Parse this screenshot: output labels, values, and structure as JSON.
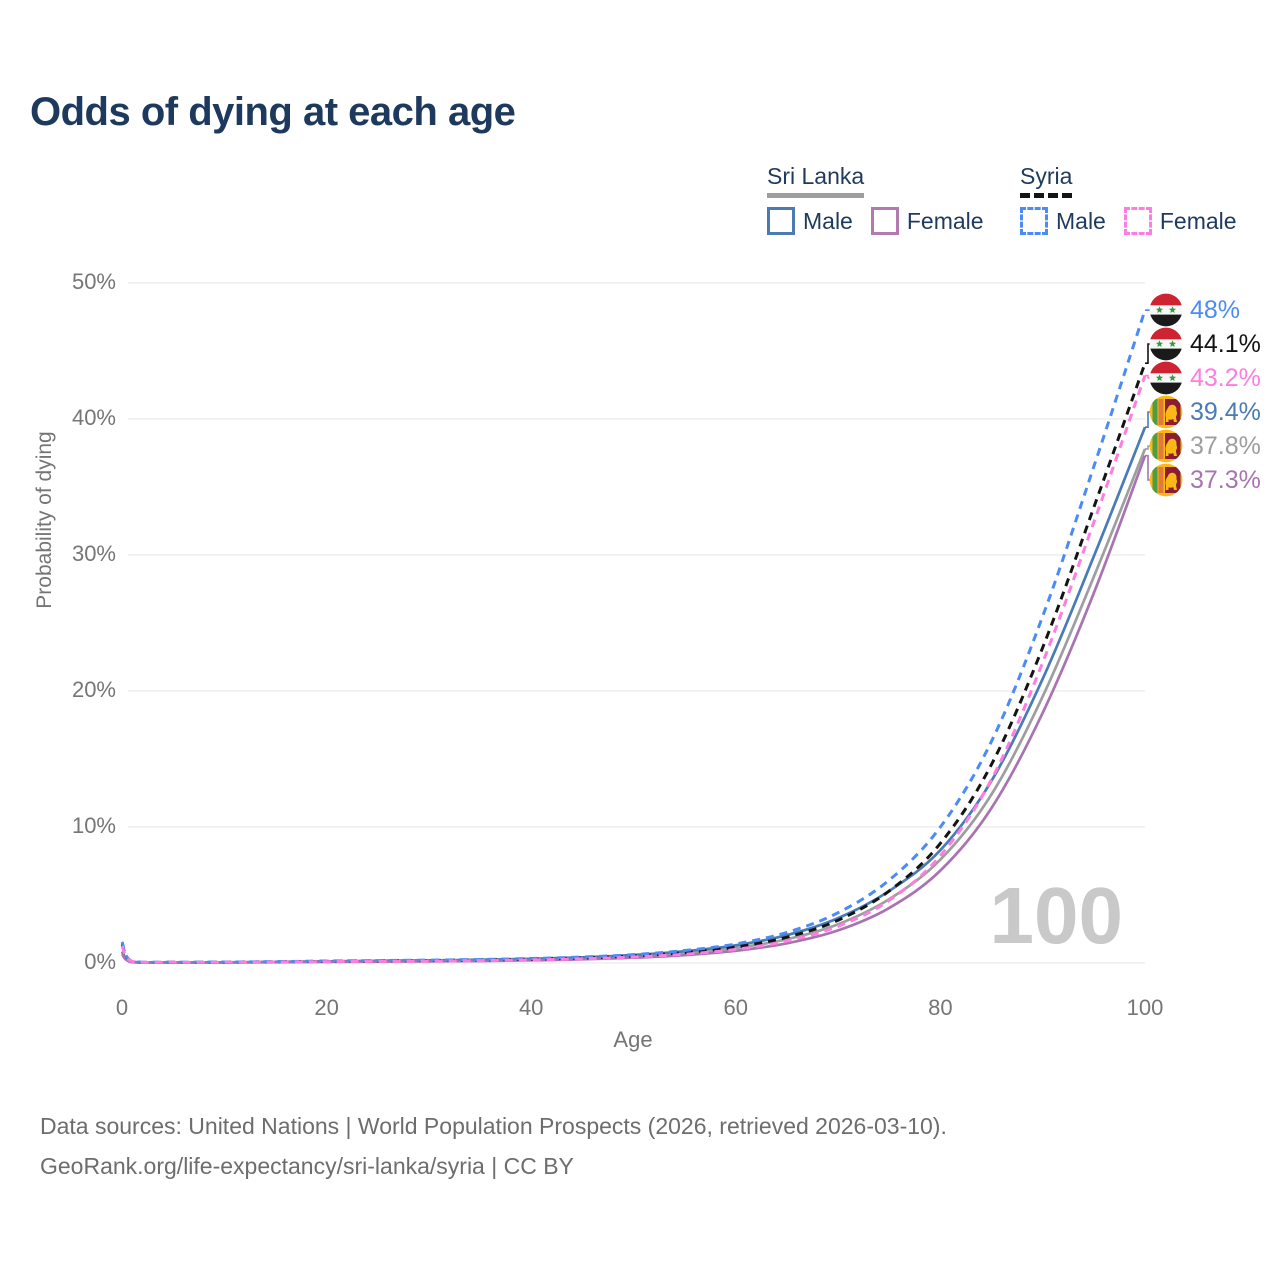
{
  "chart_data": {
    "type": "line",
    "title": "Odds of dying at each age",
    "xlabel": "Age",
    "ylabel": "Probability of dying",
    "x_ticks": [
      "0",
      "20",
      "40",
      "60",
      "80",
      "100"
    ],
    "y_ticks": [
      "0%",
      "10%",
      "20%",
      "30%",
      "40%",
      "50%"
    ],
    "xlim": [
      0,
      100
    ],
    "ylim": [
      0,
      50
    ],
    "grid": "horizontal",
    "legend_position": "top-right",
    "age_counter": "100",
    "ages": [
      0,
      1,
      5,
      10,
      15,
      20,
      25,
      30,
      35,
      40,
      45,
      50,
      55,
      60,
      65,
      70,
      75,
      80,
      85,
      90,
      95,
      100
    ],
    "series": [
      {
        "id": "sri-lanka-both",
        "name": "Sri Lanka",
        "sex": "Both",
        "flag": "sri-lanka",
        "color": "#9e9e9e",
        "dashed": false,
        "end_label": "37.8%",
        "values": [
          0.75,
          0.07,
          0.04,
          0.04,
          0.07,
          0.1,
          0.13,
          0.15,
          0.19,
          0.25,
          0.34,
          0.49,
          0.73,
          1.1,
          1.75,
          2.85,
          4.7,
          7.6,
          12.4,
          19.6,
          28.4,
          37.8
        ]
      },
      {
        "id": "sri-lanka-male",
        "name": "Sri Lanka Male",
        "sex": "Male",
        "flag": "sri-lanka",
        "color": "#4a7bb5",
        "dashed": false,
        "end_label": "39.4%",
        "values": [
          0.85,
          0.08,
          0.04,
          0.05,
          0.08,
          0.12,
          0.16,
          0.19,
          0.24,
          0.31,
          0.42,
          0.59,
          0.87,
          1.3,
          2.05,
          3.3,
          5.3,
          8.3,
          13.4,
          20.9,
          29.9,
          39.4
        ]
      },
      {
        "id": "sri-lanka-female",
        "name": "Sri Lanka Female",
        "sex": "Female",
        "flag": "sri-lanka",
        "color": "#a973b2",
        "dashed": false,
        "end_label": "37.3%",
        "values": [
          0.65,
          0.06,
          0.03,
          0.04,
          0.05,
          0.08,
          0.1,
          0.12,
          0.15,
          0.2,
          0.27,
          0.39,
          0.58,
          0.9,
          1.45,
          2.4,
          4.05,
          6.8,
          11.4,
          18.4,
          27.2,
          37.3
        ]
      },
      {
        "id": "syria-both",
        "name": "Syria",
        "sex": "Both",
        "flag": "syria",
        "color": "#141414",
        "dashed": true,
        "end_label": "44.1%",
        "values": [
          1.4,
          0.11,
          0.05,
          0.06,
          0.09,
          0.12,
          0.15,
          0.18,
          0.22,
          0.28,
          0.37,
          0.52,
          0.77,
          1.17,
          1.9,
          3.15,
          5.3,
          8.8,
          14.6,
          23.2,
          33.5,
          44.1
        ]
      },
      {
        "id": "syria-male",
        "name": "Syria Male",
        "sex": "Male",
        "flag": "syria",
        "color": "#4b8bf5",
        "dashed": true,
        "end_label": "48%",
        "values": [
          1.55,
          0.12,
          0.06,
          0.07,
          0.1,
          0.15,
          0.18,
          0.21,
          0.26,
          0.33,
          0.44,
          0.62,
          0.92,
          1.4,
          2.25,
          3.7,
          6.1,
          10.0,
          16.3,
          25.5,
          36.5,
          48.0
        ]
      },
      {
        "id": "syria-female",
        "name": "Syria Female",
        "sex": "Female",
        "flag": "syria",
        "color": "#ff7ce2",
        "dashed": true,
        "end_label": "43.2%",
        "values": [
          1.25,
          0.1,
          0.05,
          0.05,
          0.07,
          0.1,
          0.12,
          0.14,
          0.18,
          0.23,
          0.31,
          0.44,
          0.65,
          1.0,
          1.62,
          2.7,
          4.6,
          7.9,
          13.5,
          22.1,
          32.4,
          43.2
        ]
      }
    ]
  },
  "legend": {
    "groups": [
      {
        "country": "Sri Lanka",
        "underline_style": "solid",
        "underline_color": "#9e9e9e",
        "items": [
          {
            "label": "Male",
            "color": "#4a7bb5",
            "dashed": false
          },
          {
            "label": "Female",
            "color": "#b27ab0",
            "dashed": false
          }
        ]
      },
      {
        "country": "Syria",
        "underline_style": "dashed",
        "underline_color": "#141414",
        "items": [
          {
            "label": "Male",
            "color": "#4b8bf5",
            "dashed": true
          },
          {
            "label": "Female",
            "color": "#ff7ce2",
            "dashed": true
          }
        ]
      }
    ]
  },
  "colors": {
    "title": "#1d3a5e",
    "gridline": "#eaeaea",
    "tick_text": "#767676",
    "watermark": "#c9c9c9"
  },
  "footer": {
    "line1": "Data sources: United Nations | World Population Prospects (2026, retrieved 2026-03-10).",
    "line2": "GeoRank.org/life-expectancy/sri-lanka/syria | CC BY"
  }
}
